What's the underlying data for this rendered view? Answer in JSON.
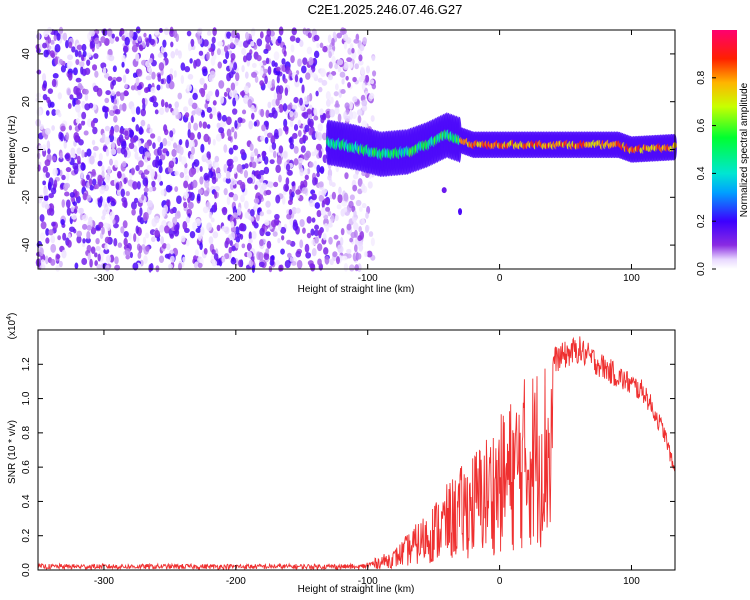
{
  "title": "C2E1.2025.246.07.46.G27",
  "chart_data": [
    {
      "type": "heatmap",
      "title": "C2E1.2025.246.07.46.G27",
      "xlabel": "Height of straight line (km)",
      "ylabel": "Frequency (Hz)",
      "xlim": [
        -350,
        133
      ],
      "ylim": [
        -50,
        50
      ],
      "xticks": [
        -300,
        -200,
        -100,
        0,
        100
      ],
      "yticks": [
        -40,
        -20,
        0,
        20,
        40
      ],
      "colorbar": {
        "label": "Normalized spectral amplitude",
        "range": [
          0,
          1
        ],
        "ticks": [
          "0.0",
          "0.2",
          "0.4",
          "0.6",
          "0.8"
        ],
        "ticks_values": [
          0.0,
          0.2,
          0.4,
          0.6,
          0.8
        ]
      },
      "features": {
        "noise_region_x": [
          -350,
          -110
        ],
        "signal_ridge": [
          [
            -130,
            3
          ],
          [
            -110,
            1
          ],
          [
            -90,
            -2
          ],
          [
            -70,
            -1
          ],
          [
            -55,
            2
          ],
          [
            -40,
            6
          ],
          [
            -30,
            4
          ],
          [
            -20,
            2
          ],
          [
            0,
            2
          ],
          [
            50,
            2
          ],
          [
            90,
            2
          ],
          [
            100,
            0
          ],
          [
            133,
            1
          ]
        ]
      }
    },
    {
      "type": "line",
      "xlabel": "Height of straight line (km)",
      "ylabel": "SNR (10 * v/v)",
      "scale_label": "(x10",
      "scale_exp": "4",
      "scale_close": ")",
      "xlim": [
        -350,
        133
      ],
      "ylim": [
        0,
        1.4
      ],
      "xticks": [
        -300,
        -200,
        -100,
        0,
        100
      ],
      "yticks": [
        "0.0",
        "0.2",
        "0.4",
        "0.6",
        "0.8",
        "1.0",
        "1.2"
      ],
      "yticks_values": [
        0.0,
        0.2,
        0.4,
        0.6,
        0.8,
        1.0,
        1.2
      ],
      "series": [
        {
          "name": "SNR",
          "color": "#ef3030",
          "envelope": [
            [
              -350,
              0.02
            ],
            [
              -110,
              0.02
            ],
            [
              -100,
              0.05
            ],
            [
              -80,
              0.12
            ],
            [
              -60,
              0.3
            ],
            [
              -40,
              0.5
            ],
            [
              -20,
              0.7
            ],
            [
              0,
              0.9
            ],
            [
              20,
              1.15
            ],
            [
              40,
              1.3
            ],
            [
              60,
              1.37
            ],
            [
              75,
              1.28
            ],
            [
              90,
              1.2
            ],
            [
              110,
              1.1
            ],
            [
              125,
              0.85
            ],
            [
              133,
              0.6
            ]
          ]
        }
      ]
    }
  ]
}
